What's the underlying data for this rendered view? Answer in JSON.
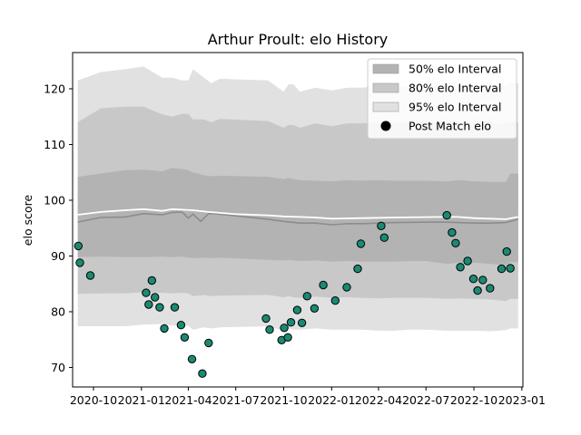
{
  "chart_data": {
    "type": "scatter",
    "title": "Arthur Proult: elo History",
    "xlabel": "",
    "ylabel": "elo score",
    "xlim": [
      "2020-08-22",
      "2023-01-03"
    ],
    "ylim": [
      66.5,
      126.5
    ],
    "yticks": [
      70,
      80,
      90,
      100,
      110,
      120
    ],
    "xticks": [
      {
        "date": "2020-10-01",
        "label": "2020-10"
      },
      {
        "date": "2021-01-01",
        "label": "2021-01"
      },
      {
        "date": "2021-04-01",
        "label": "2021-04"
      },
      {
        "date": "2021-07-01",
        "label": "2021-07"
      },
      {
        "date": "2021-10-01",
        "label": "2021-10"
      },
      {
        "date": "2022-01-01",
        "label": "2022-01"
      },
      {
        "date": "2022-04-01",
        "label": "2022-04"
      },
      {
        "date": "2022-07-01",
        "label": "2022-07"
      },
      {
        "date": "2022-10-01",
        "label": "2022-10"
      },
      {
        "date": "2023-01-01",
        "label": "2023-01"
      }
    ],
    "legend_position": "top-right",
    "legend": [
      {
        "label": "50% elo Interval",
        "color": "#b3b3b3",
        "kind": "patch"
      },
      {
        "label": "80% elo Interval",
        "color": "#c8c8c8",
        "kind": "patch"
      },
      {
        "label": "95% elo Interval",
        "color": "#e1e1e1",
        "kind": "patch"
      },
      {
        "label": "Post Match elo",
        "color": "#000000",
        "kind": "marker"
      }
    ],
    "bands": {
      "x": [
        "2020-09-01",
        "2020-10-15",
        "2020-12-01",
        "2021-01-05",
        "2021-02-10",
        "2021-03-01",
        "2021-03-20",
        "2021-04-01",
        "2021-04-10",
        "2021-05-01",
        "2021-05-15",
        "2021-06-01",
        "2021-09-01",
        "2021-10-01",
        "2021-10-10",
        "2021-10-20",
        "2021-11-01",
        "2021-12-01",
        "2022-01-01",
        "2022-02-01",
        "2022-03-01",
        "2022-04-01",
        "2022-05-01",
        "2022-06-01",
        "2022-07-01",
        "2022-08-10",
        "2022-09-01",
        "2022-10-01",
        "2022-11-01",
        "2022-12-01",
        "2022-12-10",
        "2022-12-25"
      ],
      "p95_upper": [
        121.5,
        123.0,
        123.5,
        124.0,
        122.0,
        122.0,
        121.5,
        121.5,
        123.5,
        122.0,
        121.0,
        121.8,
        121.5,
        119.5,
        120.8,
        120.8,
        119.5,
        120.2,
        119.7,
        120.2,
        120.2,
        120.6,
        120.0,
        120.6,
        120.7,
        120.5,
        120.5,
        120.5,
        120.5,
        120.5,
        121.0,
        121.0
      ],
      "p80_upper": [
        114.0,
        116.5,
        116.8,
        116.8,
        115.4,
        115.0,
        115.5,
        115.5,
        114.5,
        114.5,
        114.0,
        114.6,
        114.2,
        113.0,
        113.5,
        113.5,
        113.0,
        113.8,
        113.3,
        113.8,
        113.8,
        114.0,
        113.8,
        114.0,
        114.0,
        113.8,
        114.0,
        114.0,
        113.8,
        113.8,
        114.0,
        114.0
      ],
      "p50_upper": [
        104.2,
        104.8,
        105.4,
        105.5,
        105.2,
        105.8,
        105.6,
        105.4,
        105.0,
        104.5,
        104.3,
        104.4,
        104.2,
        103.8,
        104.0,
        103.8,
        103.6,
        103.5,
        103.4,
        103.6,
        103.5,
        103.6,
        103.5,
        103.5,
        103.5,
        103.4,
        103.6,
        103.4,
        103.3,
        103.3,
        104.8,
        104.8
      ],
      "p50_lower": [
        89.8,
        89.9,
        89.8,
        89.8,
        89.9,
        89.8,
        89.9,
        89.7,
        89.6,
        89.7,
        89.6,
        89.7,
        89.3,
        89.2,
        89.3,
        89.2,
        89.1,
        89.2,
        89.0,
        89.1,
        89.0,
        89.0,
        89.0,
        89.1,
        89.1,
        88.6,
        88.8,
        88.8,
        88.6,
        88.3,
        88.9,
        88.9
      ],
      "p80_lower": [
        83.2,
        83.3,
        83.3,
        83.5,
        83.4,
        83.3,
        83.4,
        83.3,
        82.8,
        83.0,
        82.8,
        82.9,
        83.0,
        82.6,
        82.8,
        82.6,
        82.5,
        82.7,
        82.5,
        82.6,
        82.5,
        82.4,
        82.5,
        82.5,
        82.5,
        82.3,
        82.4,
        82.3,
        82.2,
        81.9,
        82.3,
        82.3
      ],
      "p95_lower": [
        77.4,
        77.4,
        77.4,
        77.7,
        77.8,
        77.5,
        77.6,
        77.5,
        76.8,
        77.2,
        77.0,
        77.2,
        77.4,
        76.6,
        77.0,
        76.8,
        76.8,
        77.0,
        76.8,
        76.8,
        76.8,
        76.6,
        76.6,
        76.8,
        76.8,
        76.6,
        76.6,
        76.6,
        76.5,
        76.7,
        77.0,
        77.0
      ]
    },
    "mean_line": {
      "color": "#8c8c8c",
      "x": [
        "2020-09-01",
        "2020-10-15",
        "2020-12-01",
        "2021-01-05",
        "2021-02-10",
        "2021-03-01",
        "2021-03-20",
        "2021-04-01",
        "2021-04-10",
        "2021-04-25",
        "2021-05-10",
        "2021-05-20",
        "2021-07-01",
        "2021-09-01",
        "2021-10-01",
        "2021-11-01",
        "2021-12-01",
        "2022-01-01",
        "2022-02-01",
        "2022-03-01",
        "2022-05-01",
        "2022-08-01",
        "2022-09-01",
        "2022-10-01",
        "2022-11-01",
        "2022-12-01",
        "2022-12-25"
      ],
      "y": [
        96.1,
        96.9,
        97.0,
        97.6,
        97.4,
        97.8,
        97.9,
        96.8,
        97.5,
        96.2,
        97.6,
        97.6,
        97.2,
        96.6,
        96.2,
        95.9,
        95.9,
        95.6,
        95.8,
        95.8,
        96.0,
        96.1,
        96.0,
        95.9,
        95.9,
        96.0,
        96.6
      ]
    },
    "pre_line": {
      "color": "#ffffff",
      "x": [
        "2020-09-01",
        "2020-10-15",
        "2020-12-01",
        "2021-01-05",
        "2021-02-10",
        "2021-03-01",
        "2021-03-20",
        "2021-04-10",
        "2021-05-10",
        "2021-07-01",
        "2021-09-01",
        "2021-10-01",
        "2021-11-01",
        "2021-12-01",
        "2022-01-01",
        "2022-03-01",
        "2022-05-01",
        "2022-08-01",
        "2022-09-01",
        "2022-10-01",
        "2022-11-01",
        "2022-12-01",
        "2022-12-25"
      ],
      "y": [
        97.4,
        97.9,
        98.2,
        98.4,
        98.1,
        98.4,
        98.3,
        98.2,
        97.9,
        97.5,
        97.3,
        97.1,
        97.0,
        96.9,
        96.7,
        96.8,
        96.9,
        97.0,
        97.0,
        96.8,
        96.7,
        96.6,
        97.0
      ]
    },
    "points": {
      "color": "#1a8a72",
      "x": [
        "2020-09-02",
        "2020-09-05",
        "2020-09-25",
        "2021-01-10",
        "2021-01-15",
        "2021-01-21",
        "2021-01-27",
        "2021-02-05",
        "2021-02-14",
        "2021-03-06",
        "2021-03-18",
        "2021-03-25",
        "2021-04-08",
        "2021-04-28",
        "2021-05-10",
        "2021-08-28",
        "2021-09-04",
        "2021-09-27",
        "2021-10-02",
        "2021-10-09",
        "2021-10-15",
        "2021-10-27",
        "2021-11-05",
        "2021-11-15",
        "2021-11-29",
        "2021-12-16",
        "2022-01-08",
        "2022-01-30",
        "2022-02-20",
        "2022-02-26",
        "2022-04-06",
        "2022-04-12",
        "2022-08-10",
        "2022-08-20",
        "2022-08-27",
        "2022-09-05",
        "2022-09-19",
        "2022-09-30",
        "2022-10-08",
        "2022-10-18",
        "2022-11-01",
        "2022-11-23",
        "2022-12-03",
        "2022-12-10"
      ],
      "y": [
        91.8,
        88.8,
        86.5,
        83.4,
        81.3,
        85.6,
        82.6,
        80.8,
        77.0,
        80.8,
        77.6,
        75.4,
        71.5,
        68.9,
        74.4,
        78.8,
        76.8,
        74.9,
        77.1,
        75.4,
        78.1,
        80.3,
        78.0,
        82.8,
        80.6,
        84.8,
        82.0,
        84.4,
        87.7,
        92.2,
        95.4,
        93.3,
        97.3,
        94.2,
        92.3,
        88.0,
        89.1,
        85.9,
        83.8,
        85.7,
        84.2,
        87.7,
        90.8,
        87.8
      ]
    }
  }
}
